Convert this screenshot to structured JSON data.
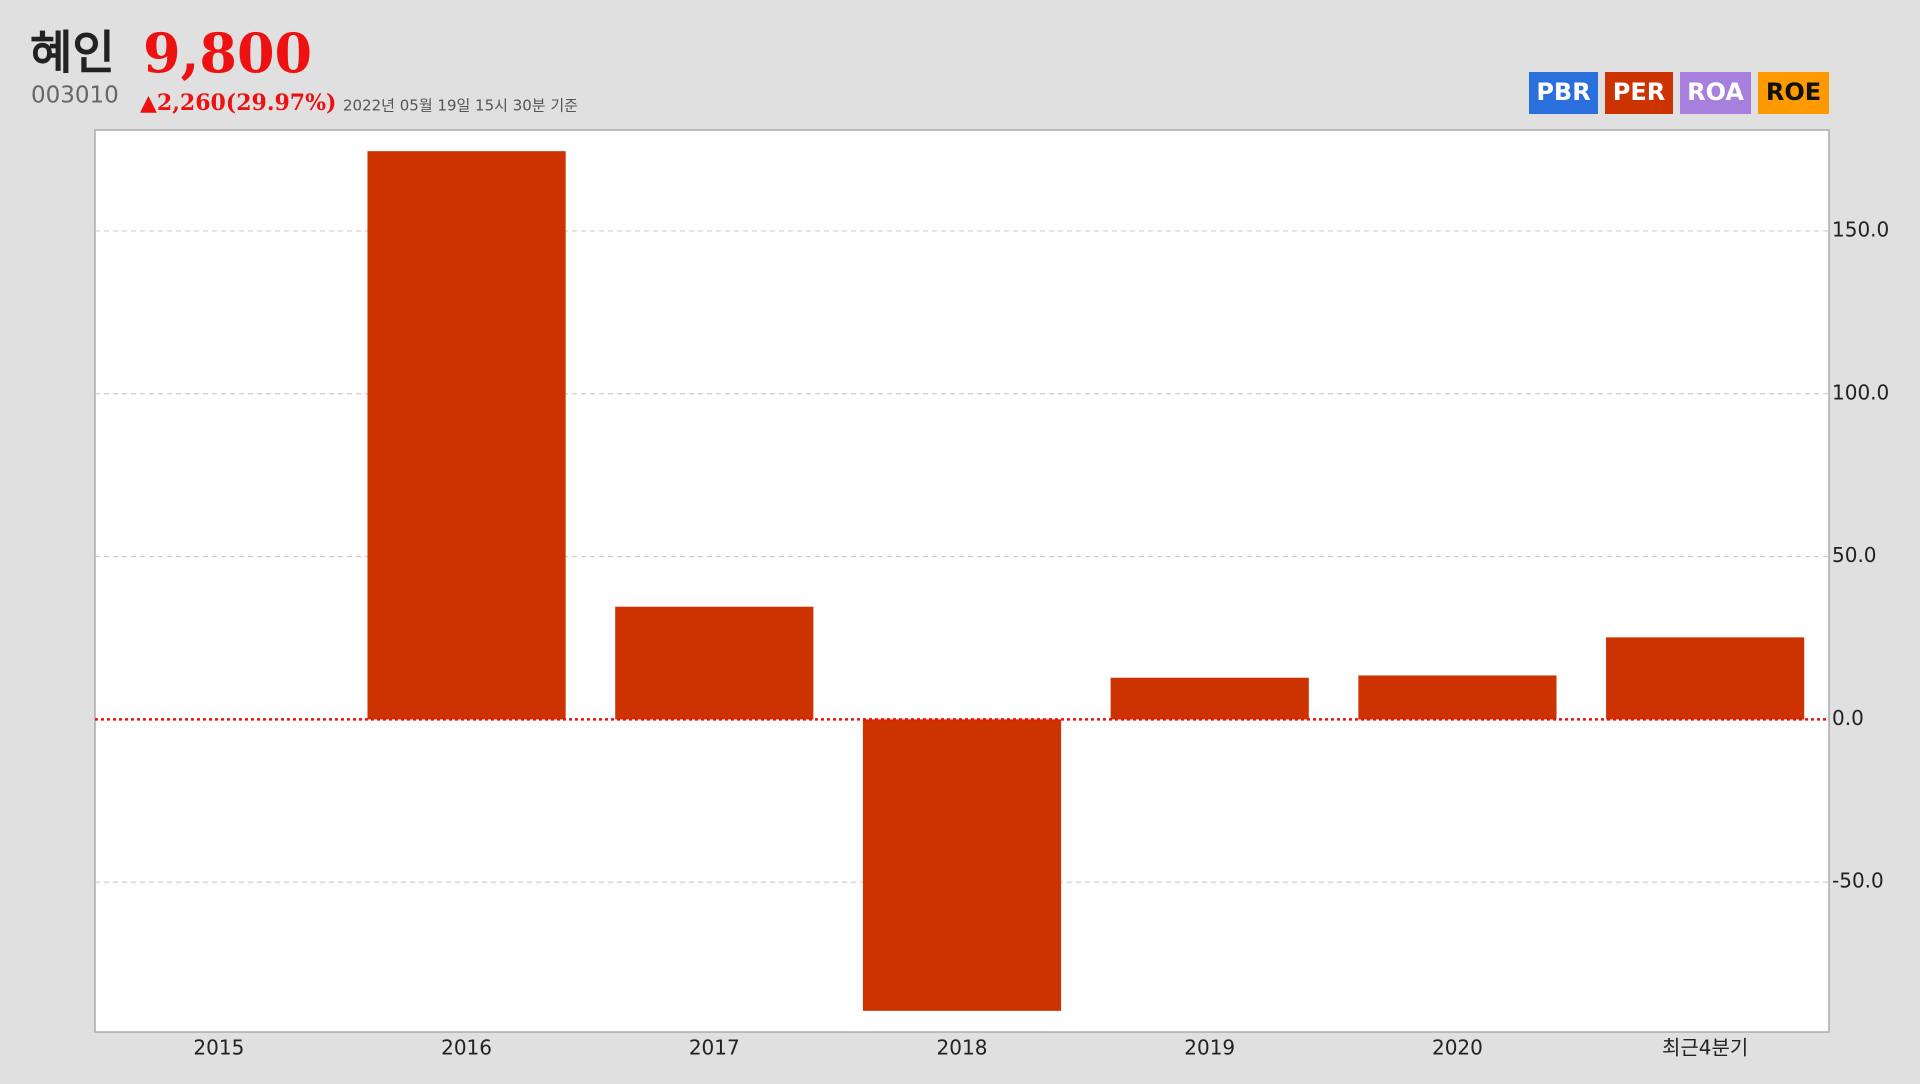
{
  "header": {
    "name": "혜인",
    "price": "9,800",
    "code": "003010",
    "change": "▲2,260(29.97%)",
    "timestamp": "2022년 05월 19일 15시 30분 기준"
  },
  "tabs": [
    {
      "label": "PBR",
      "color": "#2a6fdb"
    },
    {
      "label": "PER",
      "color": "#cc3300"
    },
    {
      "label": "ROA",
      "color": "#a77fdc"
    },
    {
      "label": "ROE",
      "color": "#ff9900"
    }
  ],
  "chart_data": {
    "type": "bar",
    "categories": [
      "2015",
      "2016",
      "2017",
      "2018",
      "2019",
      "2020",
      "최근4분기"
    ],
    "values": [
      null,
      174.5,
      34.6,
      -89.5,
      12.8,
      13.5,
      25.2
    ],
    "color": "#cc3300",
    "ylim": [
      -96,
      181
    ],
    "yticks": [
      {
        "value": -50,
        "label": "-50.0"
      },
      {
        "value": 0,
        "label": "0.0"
      },
      {
        "value": 50,
        "label": "50.0"
      },
      {
        "value": 100,
        "label": "100.0"
      },
      {
        "value": 150,
        "label": "150.0"
      }
    ],
    "grid": true
  }
}
